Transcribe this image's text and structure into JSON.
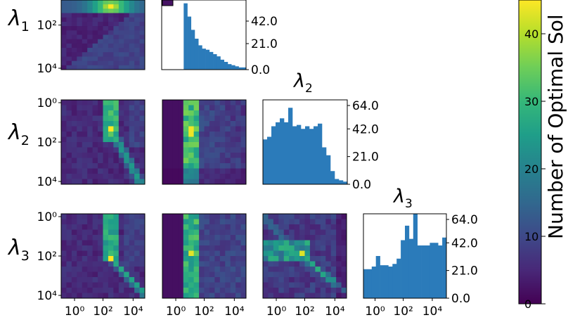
{
  "colors": {
    "hist_bar": "#2b7bba",
    "viridis": [
      "#440154",
      "#482878",
      "#3e4989",
      "#31688e",
      "#26828e",
      "#1f9e89",
      "#35b779",
      "#6ece58",
      "#b5de2b",
      "#fde725"
    ]
  },
  "row_labels": [
    {
      "base": "λ",
      "sub": "1"
    },
    {
      "base": "λ",
      "sub": "2"
    },
    {
      "base": "λ",
      "sub": "3"
    }
  ],
  "hist_titles": [
    {
      "base": "λ",
      "sub": "2"
    },
    {
      "base": "λ",
      "sub": "3"
    }
  ],
  "colorbar": {
    "label": "Number of Optimal Sol",
    "ticks": [
      "0",
      "10",
      "20",
      "30",
      "40"
    ],
    "tick_values": [
      0,
      10,
      20,
      30,
      40
    ],
    "vmin": 0,
    "vmax": 45
  },
  "chart_data": [
    {
      "id": "diag-lambda1",
      "type": "bar",
      "x_log_range": [
        -1,
        4.8
      ],
      "ylim": [
        0,
        63
      ],
      "y_tick_labels": [
        "42.0",
        "21.0",
        "0.0"
      ],
      "y_tick_values": [
        42,
        21,
        0
      ],
      "values": [
        0,
        0,
        0,
        0,
        0,
        0,
        60,
        48,
        36,
        28,
        22,
        19,
        18,
        16,
        14,
        12,
        9,
        7,
        5,
        4,
        3,
        2,
        2
      ]
    },
    {
      "id": "diag-lambda2",
      "type": "bar",
      "x_log_range": [
        -0.5,
        4.6
      ],
      "ylim": [
        0,
        64
      ],
      "y_tick_labels": [
        "64.0",
        "42.0",
        "21.0",
        "0.0"
      ],
      "y_tick_values": [
        64,
        42,
        21,
        0
      ],
      "values": [
        34,
        36,
        44,
        47,
        50,
        47,
        58,
        44,
        45,
        42,
        44,
        42,
        44,
        46,
        28,
        22,
        10,
        4,
        3,
        2
      ]
    },
    {
      "id": "diag-lambda3",
      "type": "bar",
      "x_log_range": [
        -0.5,
        4.6
      ],
      "ylim": [
        0,
        64
      ],
      "y_tick_labels": [
        "64.0",
        "42.0",
        "21.0",
        "0.0"
      ],
      "y_tick_values": [
        64,
        42,
        21,
        0
      ],
      "values": [
        22,
        22,
        24,
        32,
        25,
        25,
        24,
        26,
        30,
        44,
        55,
        45,
        64,
        40,
        40,
        40,
        42,
        42,
        40,
        46
      ]
    },
    {
      "id": "heat-r0-c0",
      "type": "heatmap",
      "y_tick_labels": [
        "10²",
        "10⁴"
      ],
      "x_tick_labels": []
    },
    {
      "id": "heat-r1-c0",
      "type": "heatmap",
      "y_tick_labels": [
        "10⁰",
        "10²",
        "10⁴"
      ],
      "x_tick_labels": []
    },
    {
      "id": "heat-r1-c1",
      "type": "heatmap",
      "y_tick_labels": [],
      "x_tick_labels": []
    },
    {
      "id": "heat-r2-c0",
      "type": "heatmap",
      "y_tick_labels": [
        "10⁰",
        "10²",
        "10⁴"
      ],
      "x_tick_labels": [
        "10⁰",
        "10²",
        "10⁴"
      ]
    },
    {
      "id": "heat-r2-c1",
      "type": "heatmap",
      "y_tick_labels": [],
      "x_tick_labels": [
        "10⁰",
        "10²",
        "10⁴"
      ]
    },
    {
      "id": "heat-r2-c2",
      "type": "heatmap",
      "y_tick_labels": [],
      "x_tick_labels": [
        "10⁰",
        "10²",
        "10⁴"
      ]
    },
    {
      "id": "heat-r0-c1-partial",
      "type": "heatmap",
      "y_tick_labels": [],
      "x_tick_labels": []
    },
    {
      "id": "diag-x-axis",
      "type": "bar",
      "x_tick_labels": [
        "10⁰",
        "10²",
        "10⁴"
      ]
    }
  ]
}
